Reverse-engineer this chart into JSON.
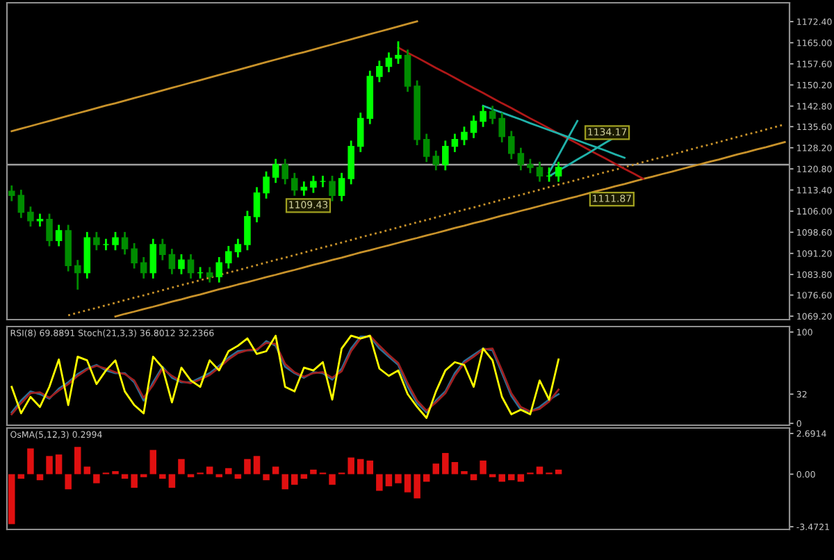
{
  "chart_data": [
    {
      "type": "candlestick",
      "colors": [
        "#008c00",
        "#008c00",
        "#008c00",
        "#00ff00",
        "#008c00",
        "#00ff00",
        "#008c00",
        "#008c00",
        "#00ff00",
        "#008c00",
        "#00ff00",
        "#00ff00",
        "#008c00",
        "#008c00",
        "#008c00",
        "#00ff00",
        "#008c00",
        "#008c00",
        "#00ff00",
        "#008c00",
        "#00ff00",
        "#008c00",
        "#00ff00",
        "#00ff00",
        "#00ff00",
        "#00ff00",
        "#00ff00",
        "#00ff00",
        "#00ff00",
        "#008c00",
        "#008c00",
        "#00ff00",
        "#00ff00",
        "#00ff00",
        "#008c00",
        "#00ff00",
        "#00ff00",
        "#00ff00",
        "#00ff00",
        "#00ff00",
        "#00ff00",
        "#00ff00",
        "#008c00",
        "#008c00",
        "#008c00",
        "#008c00",
        "#00ff00",
        "#00ff00",
        "#00ff00",
        "#00ff00",
        "#00ff00",
        "#008c00",
        "#008c00",
        "#008c00",
        "#008c00",
        "#008c00",
        "#008c00",
        "#00ff00",
        "#00ff00",
        null,
        null,
        null,
        null,
        null,
        null,
        null,
        null,
        null,
        null,
        null,
        null,
        null,
        null,
        null,
        null,
        null,
        null,
        null,
        null,
        null,
        null,
        null,
        null
      ],
      "categories": [
        null,
        null,
        null,
        null,
        null,
        null,
        null,
        null,
        null,
        null,
        null,
        null,
        null,
        null,
        null,
        null,
        null,
        null,
        null,
        null,
        null,
        null,
        null,
        null,
        null,
        null,
        null,
        null,
        null,
        null,
        null,
        null,
        null,
        null,
        null,
        null,
        null,
        null,
        null,
        null,
        null,
        null,
        null,
        null,
        null,
        null,
        null,
        null,
        null,
        null,
        null,
        null,
        null,
        null,
        null,
        null,
        null,
        null,
        null,
        null,
        null,
        null,
        null,
        null,
        null,
        null,
        null,
        null,
        null,
        null,
        null,
        null,
        null,
        null,
        null,
        null,
        null,
        null,
        null,
        null,
        null,
        null,
        null
      ],
      "ohlc": [
        [
          1113.0,
          1115.0,
          1109.5,
          1111.5
        ],
        [
          1111.5,
          1113.5,
          1103.6,
          1105.6
        ],
        [
          1105.6,
          1107.6,
          1100.6,
          1102.6
        ],
        [
          1102.6,
          1105.1,
          1100.6,
          1103.1
        ],
        [
          1103.1,
          1105.1,
          1093.7,
          1095.7
        ],
        [
          1095.7,
          1101.2,
          1093.7,
          1099.2
        ],
        [
          1099.2,
          1101.2,
          1084.9,
          1086.9
        ],
        [
          1086.9,
          1088.9,
          1078.5,
          1084.4
        ],
        [
          1084.4,
          1098.7,
          1082.4,
          1096.7
        ],
        [
          1096.7,
          1098.7,
          1092.3,
          1094.3
        ],
        [
          1094.3,
          1096.3,
          1092.3,
          1094.3
        ],
        [
          1094.3,
          1098.7,
          1092.3,
          1096.7
        ],
        [
          1096.7,
          1098.7,
          1090.8,
          1092.8
        ],
        [
          1092.8,
          1094.8,
          1085.9,
          1087.9
        ],
        [
          1087.9,
          1089.9,
          1082.4,
          1084.4
        ],
        [
          1084.4,
          1096.3,
          1082.4,
          1094.3
        ],
        [
          1094.3,
          1096.3,
          1088.8,
          1090.8
        ],
        [
          1090.8,
          1092.8,
          1083.9,
          1085.9
        ],
        [
          1085.9,
          1090.9,
          1083.9,
          1088.9
        ],
        [
          1088.9,
          1090.9,
          1082.4,
          1084.4
        ],
        [
          1084.4,
          1086.4,
          1082.4,
          1084.4
        ],
        [
          1084.4,
          1086.4,
          1081.0,
          1083.0
        ],
        [
          1083.0,
          1089.9,
          1081.0,
          1087.9
        ],
        [
          1087.9,
          1093.8,
          1085.9,
          1091.8
        ],
        [
          1091.8,
          1096.3,
          1089.8,
          1094.3
        ],
        [
          1094.3,
          1106.1,
          1092.3,
          1104.1
        ],
        [
          1104.1,
          1114.4,
          1102.1,
          1112.4
        ],
        [
          1112.4,
          1119.9,
          1110.4,
          1117.9
        ],
        [
          1117.9,
          1124.3,
          1115.9,
          1122.3
        ],
        [
          1122.3,
          1124.3,
          1115.4,
          1117.4
        ],
        [
          1117.4,
          1119.4,
          1111.4,
          1113.4
        ],
        [
          1113.4,
          1116.4,
          1111.4,
          1114.4
        ],
        [
          1114.4,
          1118.4,
          1112.4,
          1116.4
        ],
        [
          1116.4,
          1118.4,
          1114.4,
          1116.4
        ],
        [
          1116.4,
          1118.4,
          1109.5,
          1111.5
        ],
        [
          1111.5,
          1119.4,
          1109.5,
          1117.4
        ],
        [
          1117.4,
          1130.7,
          1115.4,
          1128.7
        ],
        [
          1128.7,
          1140.5,
          1126.7,
          1138.5
        ],
        [
          1138.5,
          1155.2,
          1136.5,
          1153.2
        ],
        [
          1153.2,
          1158.7,
          1151.2,
          1156.7
        ],
        [
          1156.7,
          1161.6,
          1154.7,
          1159.6
        ],
        [
          1159.6,
          1165.5,
          1157.6,
          1160.6
        ],
        [
          1160.6,
          1162.6,
          1147.8,
          1149.8
        ],
        [
          1149.8,
          1151.8,
          1129.1,
          1131.1
        ],
        [
          1131.1,
          1133.1,
          1123.2,
          1125.2
        ],
        [
          1125.2,
          1127.2,
          1120.3,
          1122.3
        ],
        [
          1122.3,
          1130.7,
          1120.3,
          1128.7
        ],
        [
          1128.7,
          1133.1,
          1126.7,
          1131.1
        ],
        [
          1131.1,
          1135.6,
          1129.1,
          1133.6
        ],
        [
          1133.6,
          1139.5,
          1131.6,
          1137.5
        ],
        [
          1137.5,
          1142.9,
          1135.5,
          1140.9
        ],
        [
          1140.9,
          1142.9,
          1136.5,
          1138.5
        ],
        [
          1138.5,
          1140.5,
          1130.1,
          1132.1
        ],
        [
          1132.1,
          1134.1,
          1124.2,
          1126.2
        ],
        [
          1126.2,
          1128.2,
          1120.3,
          1122.3
        ],
        [
          1122.3,
          1124.3,
          1119.3,
          1121.3
        ],
        [
          1121.3,
          1123.3,
          1116.3,
          1118.3
        ],
        [
          1118.3,
          1121.3,
          1116.3,
          1118.3
        ],
        [
          1118.3,
          1123.3,
          1116.3,
          1121.3
        ],
        null,
        null,
        null,
        null,
        null,
        null,
        null,
        null,
        null,
        null,
        null,
        null,
        null,
        null,
        null,
        null,
        null,
        null,
        null,
        null,
        null,
        null,
        null,
        null
      ],
      "series": [
        {
          "type": "line",
          "color": "#c8922a",
          "values": [
            1134.0,
            1134.9,
            1135.8,
            1136.7,
            1137.6,
            1138.5,
            1139.4,
            1140.3,
            1141.2,
            1142.1,
            1143.0,
            1143.8,
            1144.7,
            1145.6,
            1146.5,
            1147.4,
            1148.3,
            1149.2,
            1150.1,
            1151.0,
            1151.9,
            1152.8,
            1153.7,
            1154.6,
            1155.5,
            1156.4,
            1157.3,
            1158.2,
            1159.1,
            1160.0,
            1160.9,
            1161.7,
            1162.6,
            1163.5,
            1164.4,
            1165.3,
            1166.2,
            1167.1,
            1168.0,
            1168.9,
            1169.8,
            1170.7,
            1171.6,
            1172.5,
            null,
            null,
            null,
            null,
            null,
            null,
            null,
            null,
            null,
            null,
            null,
            null,
            null,
            null,
            null,
            null,
            null,
            null,
            null,
            null,
            null,
            null,
            null,
            null,
            null,
            null,
            null,
            null,
            null,
            null,
            null,
            null,
            null,
            null,
            null,
            null,
            null,
            null,
            null
          ]
        },
        {
          "type": "line",
          "color": "#c8922a",
          "values": [
            null,
            null,
            null,
            null,
            null,
            null,
            null,
            null,
            null,
            null,
            null,
            1069.1,
            1070.0,
            1070.8,
            1071.7,
            1072.5,
            1073.4,
            1074.3,
            1075.1,
            1076.0,
            1076.8,
            1077.7,
            1078.6,
            1079.4,
            1080.3,
            1081.1,
            1082.0,
            1082.9,
            1083.7,
            1084.6,
            1085.4,
            1086.3,
            1087.2,
            1088.0,
            1088.9,
            1089.7,
            1090.6,
            1091.5,
            1092.3,
            1093.2,
            1094.0,
            1094.9,
            1095.8,
            1096.6,
            1097.5,
            1098.3,
            1099.2,
            1100.1,
            1100.9,
            1101.8,
            1102.6,
            1103.5,
            1104.4,
            1105.2,
            1106.1,
            1106.9,
            1107.8,
            1108.7,
            1109.5,
            1110.4,
            1111.2,
            1112.1,
            1113.0,
            1113.8,
            1114.7,
            1115.5,
            1116.4,
            1117.3,
            1118.1,
            1119.0,
            1119.8,
            1120.7,
            1121.6,
            1122.4,
            1123.3,
            1124.1,
            1125.0,
            1125.9,
            1126.7,
            1127.6,
            1128.4,
            1129.3,
            1130.2
          ]
        },
        {
          "type": "line",
          "color": "#c8922a",
          "line_style": "dotted",
          "values": [
            null,
            null,
            null,
            null,
            null,
            null,
            1069.5,
            1070.4,
            1071.3,
            1072.1,
            1073.0,
            1073.9,
            1074.8,
            1075.7,
            1076.5,
            1077.4,
            1078.3,
            1079.2,
            1080.1,
            1080.9,
            1081.8,
            1082.7,
            1083.6,
            1084.5,
            1085.3,
            1086.2,
            1087.1,
            1088.0,
            1088.9,
            1089.7,
            1090.6,
            1091.5,
            1092.4,
            1093.3,
            1094.1,
            1095.0,
            1095.9,
            1096.8,
            1097.7,
            1098.5,
            1099.4,
            1100.3,
            1101.2,
            1102.1,
            1102.9,
            1103.8,
            1104.7,
            1105.6,
            1106.5,
            1107.3,
            1108.2,
            1109.1,
            1110.0,
            1110.9,
            1111.7,
            1112.6,
            1113.5,
            1114.4,
            1115.3,
            1116.1,
            1117.0,
            1117.9,
            1118.8,
            1119.7,
            1120.5,
            1121.4,
            1122.3,
            1123.2,
            1124.1,
            1124.9,
            1125.8,
            1126.7,
            1127.6,
            1128.5,
            1129.3,
            1130.2,
            1131.1,
            1132.0,
            1132.9,
            1133.7,
            1134.6,
            1135.5,
            1136.4
          ]
        },
        {
          "type": "line",
          "color": "#b01818",
          "values": [
            null,
            null,
            null,
            null,
            null,
            null,
            null,
            null,
            null,
            null,
            null,
            null,
            null,
            null,
            null,
            null,
            null,
            null,
            null,
            null,
            null,
            null,
            null,
            null,
            null,
            null,
            null,
            null,
            null,
            null,
            null,
            null,
            null,
            null,
            null,
            null,
            null,
            null,
            null,
            null,
            null,
            1163.3,
            1161.5,
            1159.8,
            1158.0,
            1156.2,
            1154.5,
            1152.7,
            1150.9,
            1149.1,
            1147.4,
            1145.6,
            1143.8,
            1142.1,
            1140.3,
            1138.5,
            1136.8,
            1135.0,
            1133.2,
            1131.4,
            1129.7,
            1127.9,
            1126.1,
            1124.4,
            1122.6,
            1120.8,
            1119.1,
            1117.3,
            null,
            null,
            null,
            null,
            null,
            null,
            null,
            null,
            null,
            null,
            null,
            null,
            null,
            null,
            null
          ]
        },
        {
          "type": "line",
          "color": "#20b2aa",
          "values": [
            null,
            null,
            null,
            null,
            null,
            null,
            null,
            null,
            null,
            null,
            null,
            null,
            null,
            null,
            null,
            null,
            null,
            null,
            null,
            null,
            null,
            null,
            null,
            null,
            null,
            null,
            null,
            null,
            null,
            null,
            null,
            null,
            null,
            null,
            null,
            null,
            null,
            null,
            null,
            null,
            null,
            null,
            null,
            null,
            null,
            null,
            null,
            null,
            null,
            null,
            1142.9,
            1141.7,
            1140.5,
            1139.3,
            1138.1,
            1136.8,
            1135.6,
            1134.4,
            1133.2,
            1132.0,
            1130.8,
            1129.6,
            1128.4,
            1127.2,
            1125.9,
            1124.7,
            null,
            null,
            null,
            null,
            null,
            null,
            null,
            null,
            null,
            null,
            null,
            null,
            null,
            null,
            null,
            null,
            null
          ]
        },
        {
          "type": "line",
          "color": "#20b2aa",
          "values": [
            null,
            null,
            null,
            null,
            null,
            null,
            null,
            null,
            null,
            null,
            null,
            null,
            null,
            null,
            null,
            null,
            null,
            null,
            null,
            null,
            null,
            null,
            null,
            null,
            null,
            null,
            null,
            null,
            null,
            null,
            null,
            null,
            null,
            null,
            null,
            null,
            null,
            null,
            null,
            null,
            null,
            null,
            null,
            null,
            null,
            null,
            null,
            null,
            null,
            null,
            null,
            null,
            null,
            null,
            null,
            null,
            null,
            1119.5,
            1125.5,
            1131.6,
            1137.6,
            null,
            null,
            null,
            null,
            null,
            null,
            null,
            null,
            null,
            null,
            null,
            null,
            null,
            null,
            null,
            null,
            null,
            null,
            null,
            null,
            null,
            null
          ]
        },
        {
          "type": "line",
          "color": "#20b2aa",
          "values": [
            null,
            null,
            null,
            null,
            null,
            null,
            null,
            null,
            null,
            null,
            null,
            null,
            null,
            null,
            null,
            null,
            null,
            null,
            null,
            null,
            null,
            null,
            null,
            null,
            null,
            null,
            null,
            null,
            null,
            null,
            null,
            null,
            null,
            null,
            null,
            null,
            null,
            null,
            null,
            null,
            null,
            null,
            null,
            null,
            null,
            null,
            null,
            null,
            null,
            null,
            null,
            null,
            null,
            null,
            null,
            null,
            null,
            1118.2,
            1120.2,
            1122.1,
            1124.1,
            1126.0,
            1128.0,
            1130.0,
            1131.9,
            null,
            null,
            null,
            null,
            null,
            null,
            null,
            null,
            null,
            null,
            null,
            null,
            null,
            null,
            null,
            null,
            null,
            null
          ]
        }
      ],
      "ref_lines": [
        {
          "axis": "y",
          "value": 1122.3,
          "color": "#a0a0a0",
          "line_style": "solid"
        }
      ],
      "annotations": [
        "1109.43",
        "1134.17",
        "1111.87"
      ],
      "ylim": [
        1068,
        1179
      ],
      "yticks": [
        {
          "value": 1172.4,
          "label": "1172.40"
        },
        {
          "value": 1165.0,
          "label": "1165.00"
        },
        {
          "value": 1157.6,
          "label": "1157.60"
        },
        {
          "value": 1150.2,
          "label": "1150.20"
        },
        {
          "value": 1142.8,
          "label": "1142.80"
        },
        {
          "value": 1135.6,
          "label": "1135.60"
        },
        {
          "value": 1128.2,
          "label": "1128.20"
        },
        {
          "value": 1120.8,
          "label": "1120.80"
        },
        {
          "value": 1113.4,
          "label": "1113.40"
        },
        {
          "value": 1106.0,
          "label": "1106.00"
        },
        {
          "value": 1098.6,
          "label": "1098.60"
        },
        {
          "value": 1091.2,
          "label": "1091.20"
        },
        {
          "value": 1083.8,
          "label": "1083.80"
        },
        {
          "value": 1076.6,
          "label": "1076.60"
        },
        {
          "value": 1069.2,
          "label": "1069.20"
        }
      ],
      "tick_labels": "y",
      "grid": false
    },
    {
      "type": "line",
      "title": "RSI(8) 69.8891 Stoch(21,3,3) 36.8012 32.2366",
      "categories": [
        null,
        null,
        null,
        null,
        null,
        null,
        null,
        null,
        null,
        null,
        null,
        null,
        null,
        null,
        null,
        null,
        null,
        null,
        null,
        null,
        null,
        null,
        null,
        null,
        null,
        null,
        null,
        null,
        null,
        null,
        null,
        null,
        null,
        null,
        null,
        null,
        null,
        null,
        null,
        null,
        null,
        null,
        null,
        null,
        null,
        null,
        null,
        null,
        null,
        null,
        null,
        null,
        null,
        null,
        null,
        null,
        null,
        null,
        null,
        null,
        null,
        null,
        null,
        null,
        null,
        null,
        null,
        null,
        null,
        null,
        null,
        null,
        null,
        null,
        null,
        null,
        null,
        null,
        null,
        null,
        null,
        null,
        null
      ],
      "series": [
        {
          "color": "#2a6f97",
          "values": [
            12,
            25,
            35,
            32,
            27,
            38,
            45,
            54,
            60,
            64,
            58,
            55,
            55,
            45,
            25,
            45,
            62,
            50,
            45,
            45,
            50,
            55,
            63,
            72,
            79,
            80,
            80,
            90,
            85,
            62,
            55,
            50,
            56,
            55,
            48,
            60,
            82,
            95,
            95,
            82,
            73,
            64,
            40,
            22,
            12,
            25,
            35,
            55,
            68,
            75,
            82,
            80,
            55,
            30,
            15,
            13,
            18,
            26,
            32,
            null,
            null,
            null,
            null,
            null,
            null,
            null,
            null,
            null,
            null,
            null,
            null,
            null,
            null,
            null,
            null,
            null,
            null,
            null,
            null,
            null,
            null,
            null,
            null
          ]
        },
        {
          "color": "#a02020",
          "values": [
            10,
            22,
            33,
            34,
            28,
            36,
            43,
            52,
            59,
            63,
            60,
            56,
            54,
            47,
            28,
            42,
            60,
            52,
            46,
            44,
            48,
            53,
            61,
            70,
            77,
            80,
            81,
            88,
            87,
            65,
            56,
            51,
            55,
            56,
            50,
            57,
            79,
            93,
            96,
            85,
            75,
            66,
            44,
            25,
            14,
            23,
            33,
            52,
            66,
            73,
            81,
            82,
            58,
            33,
            18,
            13,
            16,
            24,
            37,
            null,
            null,
            null,
            null,
            null,
            null,
            null,
            null,
            null,
            null,
            null,
            null,
            null,
            null,
            null,
            null,
            null,
            null,
            null,
            null,
            null,
            null,
            null,
            null
          ]
        },
        {
          "color": "#ffff00",
          "values": [
            40,
            11,
            29,
            18,
            40,
            70,
            20,
            73,
            69,
            43,
            58,
            69,
            35,
            20,
            11,
            73,
            61,
            23,
            61,
            47,
            40,
            69,
            58,
            79,
            85,
            93,
            76,
            79,
            96,
            40,
            35,
            61,
            58,
            67,
            26,
            82,
            96,
            93,
            96,
            60,
            52,
            58,
            32,
            18,
            6,
            35,
            58,
            67,
            64,
            40,
            82,
            69,
            29,
            10,
            15,
            10,
            47,
            26,
            70,
            null,
            null,
            null,
            null,
            null,
            null,
            null,
            null,
            null,
            null,
            null,
            null,
            null,
            null,
            null,
            null,
            null,
            null,
            null,
            null,
            null,
            null,
            null,
            null
          ]
        }
      ],
      "ylim": [
        -2,
        106
      ],
      "yticks": [
        100,
        32,
        0
      ],
      "tick_labels": "y",
      "grid": false
    },
    {
      "type": "bar",
      "title": "OsMA(5,12,3) 0.2994",
      "color": "#e01010",
      "categories": [
        null,
        null,
        null,
        null,
        null,
        null,
        null,
        null,
        null,
        null,
        null,
        null,
        null,
        null,
        null,
        null,
        null,
        null,
        null,
        null,
        null,
        null,
        null,
        null,
        null,
        null,
        null,
        null,
        null,
        null,
        null,
        null,
        null,
        null,
        null,
        null,
        null,
        null,
        null,
        null,
        null,
        null,
        null,
        null,
        null,
        null,
        null,
        null,
        null,
        null,
        null,
        null,
        null,
        null,
        null,
        null,
        null,
        null,
        null,
        null,
        null,
        null,
        null,
        null,
        null,
        null,
        null,
        null,
        null,
        null,
        null,
        null,
        null,
        null,
        null,
        null,
        null,
        null,
        null,
        null,
        null,
        null,
        null
      ],
      "values": [
        -3.3,
        -0.3,
        1.7,
        -0.4,
        1.2,
        1.3,
        -1.0,
        1.8,
        0.5,
        -0.6,
        0.1,
        0.2,
        -0.3,
        -0.9,
        -0.2,
        1.6,
        -0.3,
        -0.9,
        1.0,
        -0.2,
        0.1,
        0.5,
        -0.2,
        0.4,
        -0.3,
        1.0,
        1.2,
        -0.4,
        0.5,
        -1.0,
        -0.7,
        -0.3,
        0.3,
        0.1,
        -0.7,
        0.1,
        1.1,
        1.0,
        0.9,
        -1.1,
        -0.8,
        -0.6,
        -1.2,
        -1.6,
        -0.5,
        0.7,
        1.4,
        0.8,
        0.2,
        -0.4,
        0.9,
        -0.2,
        -0.5,
        -0.4,
        -0.5,
        0.1,
        0.5,
        0.1,
        0.3,
        null,
        null,
        null,
        null,
        null,
        null,
        null,
        null,
        null,
        null,
        null,
        null,
        null,
        null,
        null,
        null,
        null,
        null,
        null,
        null,
        null,
        null,
        null,
        null
      ],
      "ylim": [
        -3.65,
        3.05
      ],
      "yticks": [
        2.6914,
        {
          "value": 0,
          "label": "0.00"
        },
        -3.4721
      ],
      "tick_labels": "y",
      "grid": false
    }
  ]
}
